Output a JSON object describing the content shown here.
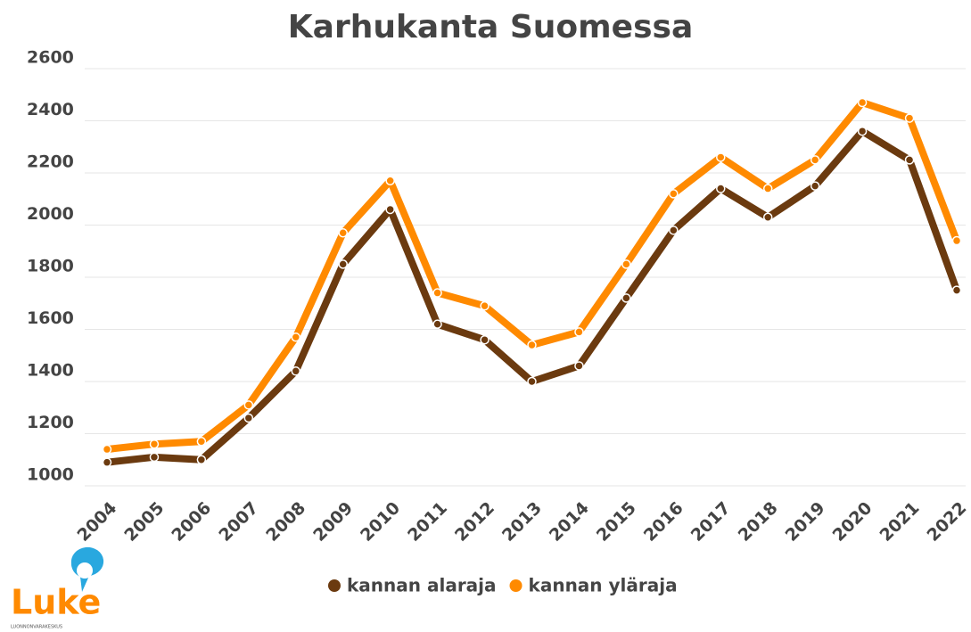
{
  "chart_data": {
    "type": "line",
    "title": "Karhukanta Suomessa",
    "categories": [
      "2004",
      "2005",
      "2006",
      "2007",
      "2008",
      "2009",
      "2010",
      "2011",
      "2012",
      "2013",
      "2014",
      "2015",
      "2016",
      "2017",
      "2018",
      "2019",
      "2020",
      "2021",
      "2022"
    ],
    "series": [
      {
        "name": "kannan alaraja",
        "color": "#6b3a0f",
        "values": [
          1090,
          1110,
          1100,
          1260,
          1440,
          1850,
          2060,
          1620,
          1560,
          1400,
          1460,
          1720,
          1980,
          2140,
          2030,
          2150,
          2360,
          2250,
          1750
        ]
      },
      {
        "name": "kannan yläraja",
        "color": "#ff8a00",
        "values": [
          1140,
          1160,
          1170,
          1310,
          1570,
          1970,
          2170,
          1740,
          1690,
          1540,
          1590,
          1850,
          2120,
          2260,
          2140,
          2250,
          2470,
          2410,
          1940
        ]
      }
    ],
    "ylim": [
      1000,
      2600
    ],
    "yticks": [
      1000,
      1200,
      1400,
      1600,
      1800,
      2000,
      2200,
      2400,
      2600
    ],
    "grid": true,
    "legend": "bottom"
  },
  "logo": {
    "name": "Luke",
    "subtitle": "LUONNONVARAKESKUS"
  }
}
